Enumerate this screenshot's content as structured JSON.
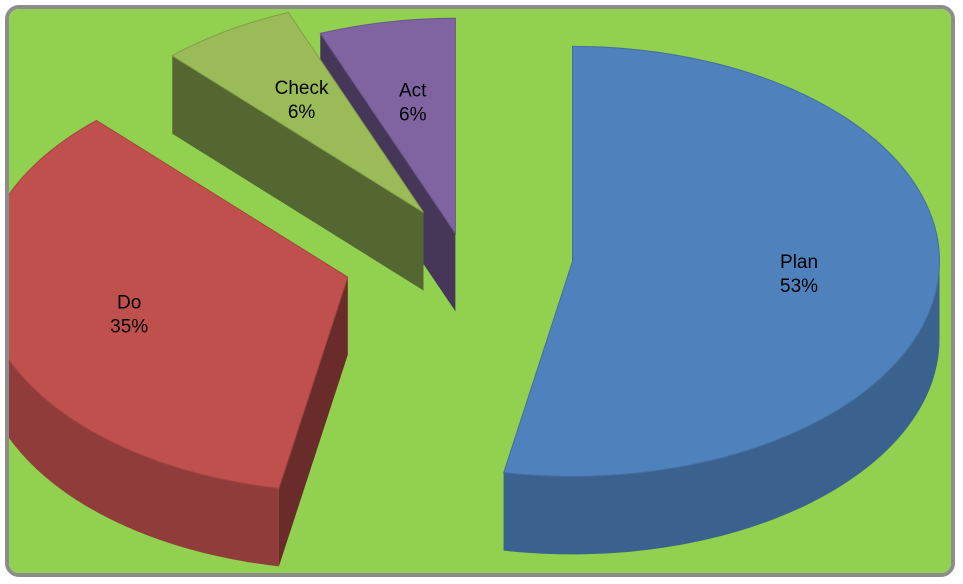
{
  "background_color": "#92d050",
  "frame_color": "#8c8c8c",
  "chart_data": {
    "type": "pie",
    "style": "3d-exploded",
    "title": "",
    "slices": [
      {
        "label": "Plan",
        "value": 53,
        "display": "53%",
        "color": "#4f81bd"
      },
      {
        "label": "Do",
        "value": 35,
        "display": "35%",
        "color": "#c0504d"
      },
      {
        "label": "Check",
        "value": 6,
        "display": "6%",
        "color": "#9bbb59"
      },
      {
        "label": "Act",
        "value": 6,
        "display": "6%",
        "color": "#8064a2"
      }
    ],
    "legend": "none",
    "data_labels": "inside"
  }
}
